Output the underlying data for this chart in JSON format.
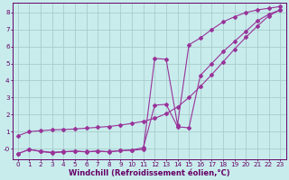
{
  "xlabel": "Windchill (Refroidissement éolien,°C)",
  "bg_color": "#c8ecec",
  "grid_color": "#a8cccc",
  "line_color": "#993399",
  "xlim": [
    -0.5,
    23.5
  ],
  "ylim": [
    -0.65,
    8.55
  ],
  "xticks": [
    0,
    1,
    2,
    3,
    4,
    5,
    6,
    7,
    8,
    9,
    10,
    11,
    12,
    13,
    14,
    15,
    16,
    17,
    18,
    19,
    20,
    21,
    22,
    23
  ],
  "yticks": [
    0,
    1,
    2,
    3,
    4,
    5,
    6,
    7,
    8
  ],
  "ytick_labels": [
    "-0",
    "1",
    "2",
    "3",
    "4",
    "5",
    "6",
    "7",
    "8"
  ],
  "line1_x": [
    0,
    1,
    2,
    3,
    4,
    5,
    6,
    7,
    8,
    9,
    10,
    11,
    12,
    13,
    14,
    15,
    16,
    17,
    18,
    19,
    20,
    21,
    22,
    23
  ],
  "line1_y": [
    0.75,
    1.0,
    1.05,
    1.1,
    1.12,
    1.15,
    1.2,
    1.25,
    1.3,
    1.38,
    1.48,
    1.6,
    1.78,
    2.05,
    2.45,
    3.0,
    3.65,
    4.35,
    5.1,
    5.85,
    6.55,
    7.2,
    7.8,
    8.15
  ],
  "line2_x": [
    0,
    1,
    2,
    3,
    4,
    5,
    6,
    7,
    8,
    9,
    10,
    11,
    12,
    13,
    14,
    15,
    16,
    17,
    18,
    19,
    20,
    21,
    22,
    23
  ],
  "line2_y": [
    -0.3,
    -0.05,
    -0.15,
    -0.22,
    -0.18,
    -0.15,
    -0.18,
    -0.15,
    -0.18,
    -0.12,
    -0.08,
    0.05,
    2.55,
    2.6,
    1.28,
    1.22,
    4.3,
    5.0,
    5.7,
    6.3,
    6.9,
    7.5,
    7.9,
    8.15
  ],
  "line3_x": [
    0,
    1,
    2,
    3,
    4,
    5,
    6,
    7,
    8,
    9,
    10,
    11,
    12,
    13,
    14,
    15,
    16,
    17,
    18,
    19,
    20,
    21,
    22,
    23
  ],
  "line3_y": [
    -0.3,
    -0.05,
    -0.18,
    -0.25,
    -0.2,
    -0.15,
    -0.2,
    -0.15,
    -0.2,
    -0.12,
    -0.1,
    -0.05,
    5.3,
    5.25,
    1.4,
    6.1,
    6.5,
    7.0,
    7.45,
    7.75,
    8.0,
    8.15,
    8.25,
    8.35
  ],
  "axis_color": "#660066",
  "tick_color": "#660066",
  "label_fontsize": 6.0,
  "tick_fontsize": 5.2,
  "marker_size": 2.0,
  "line_width": 0.8
}
